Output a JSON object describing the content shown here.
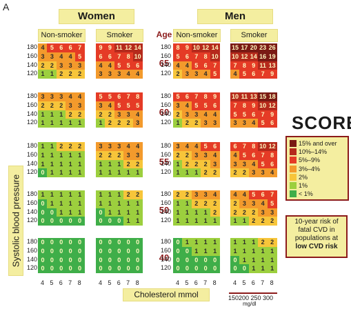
{
  "panel_label": "A",
  "headers": {
    "women": "Women",
    "men": "Men",
    "age": "Age",
    "non_smoker": "Non-smoker",
    "smoker": "Smoker"
  },
  "axes": {
    "ylabel": "Systolic blood pressure",
    "xlabel": "Cholesterol  mmol",
    "chol_ticks": [
      "4",
      "5",
      "6",
      "7",
      "8"
    ],
    "mg_ticks": "150200 250 300",
    "mg_unit": "mg/dl"
  },
  "logo": "SCORE",
  "legend": [
    {
      "label": "15% and over",
      "color": "#7a1a14"
    },
    {
      "label": "10%–14%",
      "color": "#b52a1c"
    },
    {
      "label": "5%–9%",
      "color": "#e53b26"
    },
    {
      "label": "3%–4%",
      "color": "#f39a2c"
    },
    {
      "label": "2%",
      "color": "#f7c53a"
    },
    {
      "label": "1%",
      "color": "#9ccf3e"
    },
    {
      "label": "< 1%",
      "color": "#3fae49"
    }
  ],
  "note": {
    "line1": "10-year risk of",
    "line2": "fatal CVD in",
    "line3": "populations at",
    "line4": "low CVD risk"
  },
  "chart_data": {
    "type": "heatmap",
    "title": "",
    "xlabel": "Cholesterol  mmol",
    "ylabel": "Systolic blood pressure",
    "x": [
      4,
      5,
      6,
      7,
      8
    ],
    "sbp": [
      180,
      160,
      140,
      120
    ],
    "ages": [
      65,
      60,
      55,
      50,
      40
    ],
    "groups": [
      "Women Non-smoker",
      "Women Smoker",
      "Men Non-smoker",
      "Men Smoker"
    ],
    "values": {
      "65": [
        [
          [
            4,
            5,
            6,
            6,
            7
          ],
          [
            3,
            3,
            4,
            4,
            5
          ],
          [
            2,
            2,
            3,
            3,
            3
          ],
          [
            1,
            1,
            2,
            2,
            2
          ]
        ],
        [
          [
            9,
            9,
            11,
            12,
            14
          ],
          [
            6,
            6,
            7,
            8,
            10
          ],
          [
            4,
            4,
            5,
            5,
            6
          ],
          [
            3,
            3,
            3,
            4,
            4
          ]
        ],
        [
          [
            8,
            9,
            10,
            12,
            14
          ],
          [
            5,
            6,
            7,
            8,
            10
          ],
          [
            4,
            4,
            5,
            6,
            7
          ],
          [
            2,
            3,
            3,
            4,
            5
          ]
        ],
        [
          [
            15,
            17,
            20,
            23,
            26
          ],
          [
            10,
            12,
            14,
            16,
            19
          ],
          [
            7,
            8,
            9,
            11,
            13
          ],
          [
            4,
            5,
            6,
            7,
            9
          ]
        ]
      ],
      "60": [
        [
          [
            3,
            3,
            3,
            4,
            4
          ],
          [
            2,
            2,
            2,
            3,
            3
          ],
          [
            1,
            1,
            1,
            2,
            2
          ],
          [
            1,
            1,
            1,
            1,
            1
          ]
        ],
        [
          [
            5,
            5,
            6,
            7,
            8
          ],
          [
            3,
            4,
            5,
            5,
            5
          ],
          [
            2,
            2,
            3,
            3,
            4
          ],
          [
            1,
            2,
            2,
            2,
            3
          ]
        ],
        [
          [
            5,
            6,
            7,
            8,
            9
          ],
          [
            3,
            4,
            5,
            5,
            6
          ],
          [
            2,
            3,
            3,
            4,
            4
          ],
          [
            1,
            2,
            2,
            3,
            3
          ]
        ],
        [
          [
            10,
            11,
            13,
            15,
            18
          ],
          [
            7,
            8,
            9,
            10,
            12
          ],
          [
            5,
            5,
            6,
            7,
            9
          ],
          [
            3,
            3,
            4,
            5,
            6
          ]
        ]
      ],
      "55": [
        [
          [
            1,
            1,
            2,
            2,
            2
          ],
          [
            1,
            1,
            1,
            1,
            1
          ],
          [
            1,
            1,
            1,
            1,
            1
          ],
          [
            0,
            1,
            1,
            1,
            1
          ]
        ],
        [
          [
            3,
            3,
            3,
            4,
            4
          ],
          [
            2,
            2,
            2,
            3,
            3
          ],
          [
            1,
            1,
            1,
            2,
            2
          ],
          [
            1,
            1,
            1,
            1,
            1
          ]
        ],
        [
          [
            3,
            4,
            4,
            5,
            6
          ],
          [
            2,
            2,
            3,
            3,
            4
          ],
          [
            1,
            2,
            2,
            2,
            3
          ],
          [
            1,
            1,
            1,
            2,
            2
          ]
        ],
        [
          [
            6,
            7,
            8,
            10,
            12
          ],
          [
            4,
            5,
            6,
            7,
            8
          ],
          [
            3,
            3,
            4,
            5,
            6
          ],
          [
            2,
            2,
            3,
            3,
            4
          ]
        ]
      ],
      "50": [
        [
          [
            1,
            1,
            1,
            1,
            1
          ],
          [
            0,
            1,
            1,
            1,
            1
          ],
          [
            0,
            0,
            1,
            1,
            1
          ],
          [
            0,
            0,
            0,
            0,
            0
          ]
        ],
        [
          [
            1,
            1,
            1,
            2,
            2
          ],
          [
            1,
            1,
            1,
            1,
            1
          ],
          [
            0,
            1,
            1,
            1,
            1
          ],
          [
            0,
            0,
            0,
            1,
            1
          ]
        ],
        [
          [
            2,
            2,
            3,
            3,
            4
          ],
          [
            1,
            1,
            2,
            2,
            2
          ],
          [
            1,
            1,
            1,
            1,
            2
          ],
          [
            1,
            1,
            1,
            1,
            1
          ]
        ],
        [
          [
            4,
            4,
            5,
            6,
            7
          ],
          [
            2,
            3,
            3,
            4,
            5
          ],
          [
            2,
            2,
            2,
            3,
            3
          ],
          [
            1,
            1,
            2,
            2,
            2
          ]
        ]
      ],
      "40": [
        [
          [
            0,
            0,
            0,
            0,
            0
          ],
          [
            0,
            0,
            0,
            0,
            0
          ],
          [
            0,
            0,
            0,
            0,
            0
          ],
          [
            0,
            0,
            0,
            0,
            0
          ]
        ],
        [
          [
            0,
            0,
            0,
            0,
            0
          ],
          [
            0,
            0,
            0,
            0,
            0
          ],
          [
            0,
            0,
            0,
            0,
            0
          ],
          [
            0,
            0,
            0,
            0,
            0
          ]
        ],
        [
          [
            0,
            1,
            1,
            1,
            1
          ],
          [
            0,
            0,
            1,
            1,
            1
          ],
          [
            0,
            0,
            0,
            0,
            0
          ],
          [
            0,
            0,
            0,
            0,
            0
          ]
        ],
        [
          [
            1,
            1,
            1,
            2,
            2
          ],
          [
            1,
            1,
            1,
            1,
            1
          ],
          [
            0,
            1,
            1,
            1,
            1
          ],
          [
            0,
            0,
            1,
            1,
            1
          ]
        ]
      ]
    }
  }
}
